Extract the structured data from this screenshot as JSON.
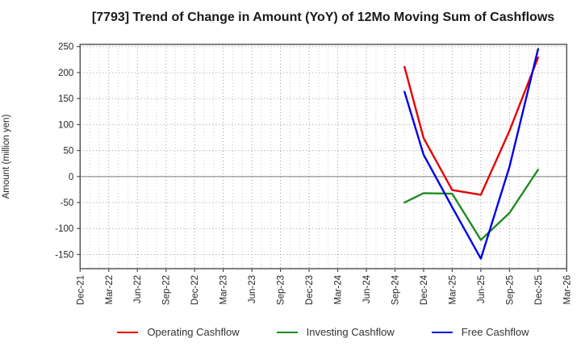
{
  "chart_data": {
    "type": "line",
    "title": "[7793]  Trend of Change in Amount (YoY) of 12Mo Moving Sum of Cashflows",
    "ylabel": "Amount (million yen)",
    "xlabel": "",
    "y_axis": {
      "min": -150,
      "max": 250,
      "step": 50,
      "tick_labels": [
        "-150",
        "-100",
        "-50",
        "0",
        "50",
        "100",
        "150",
        "200",
        "250"
      ]
    },
    "x_axis": {
      "tick_labels": [
        "Dec-21",
        "Mar-22",
        "Jun-22",
        "Sep-22",
        "Dec-22",
        "Mar-23",
        "Jun-23",
        "Sep-23",
        "Dec-23",
        "Mar-24",
        "Jun-24",
        "Sep-24",
        "Dec-24",
        "Mar-25",
        "Jun-25",
        "Sep-25",
        "Dec-25",
        "Mar-26"
      ],
      "months_total": 51,
      "tick_every_months": 3,
      "minor_grid": "monthly",
      "grid_style": "dotted"
    },
    "x_points": [
      "Oct-24",
      "Dec-24",
      "Mar-25",
      "Jun-25",
      "Sep-25",
      "Dec-25"
    ],
    "x_point_months_from_start": [
      34,
      36,
      39,
      42,
      45,
      48
    ],
    "series": [
      {
        "name": "Operating Cashflow",
        "color": "#e60000",
        "values": [
          211,
          74,
          -26,
          -35,
          88,
          229
        ]
      },
      {
        "name": "Investing Cashflow",
        "color": "#1e8b22",
        "values": [
          -50,
          -32,
          -33,
          -122,
          -70,
          13
        ]
      },
      {
        "name": "Free Cashflow",
        "color": "#0000e6",
        "values": [
          163,
          42,
          -59,
          -158,
          19,
          245
        ]
      }
    ],
    "legend_position": "bottom",
    "zero_line": true,
    "colors": {
      "grid_major": "#9a9a9a",
      "grid_minor": "#cccccc",
      "zero_line": "#888888",
      "border": "#4d4d4d",
      "tick_text": "#262626",
      "title_text": "#1a1a1a"
    }
  }
}
